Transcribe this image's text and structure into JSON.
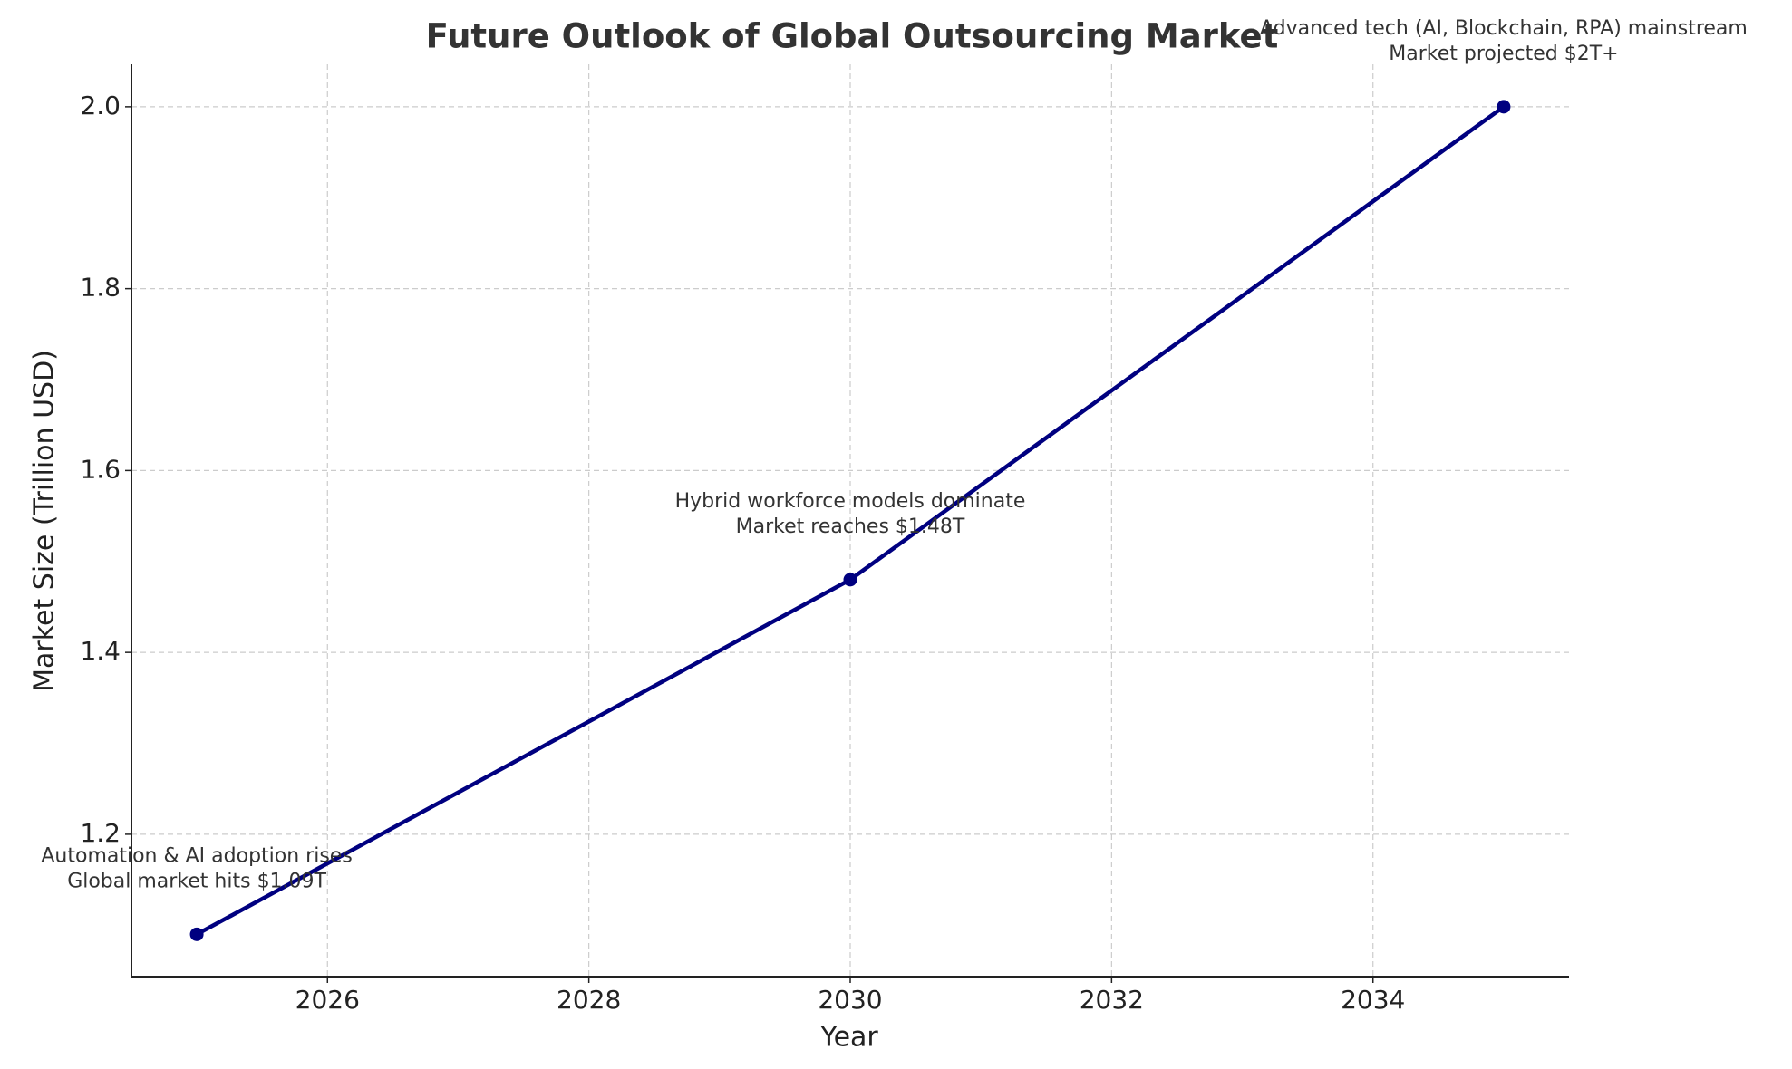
{
  "chart_data": {
    "type": "line",
    "title": "Future Outlook of Global Outsourcing Market",
    "x_label": "Year",
    "y_label": "Market Size (Trillion USD)",
    "x": [
      2025,
      2030,
      2035
    ],
    "series": [
      {
        "color": "#000080",
        "values": [
          1.09,
          1.48,
          2.0
        ]
      }
    ],
    "annotations": [
      [
        "Automation & AI adoption rises",
        "Global market hits $1.09T"
      ],
      [
        "Hybrid workforce models dominate",
        "Market reaches $1.48T"
      ],
      [
        "Advanced tech (AI, Blockchain, RPA) mainstream",
        "Market projected $2T+"
      ]
    ],
    "xlim": [
      2024.5,
      2035.5
    ],
    "ylim": [
      1.0435,
      2.0467
    ],
    "xticks": [
      2026,
      2028,
      2030,
      2032,
      2034
    ],
    "yticks": [
      1.2,
      1.4,
      1.6,
      1.8,
      {
        "value": 2.0,
        "label": "2.0"
      }
    ],
    "grid": true
  }
}
